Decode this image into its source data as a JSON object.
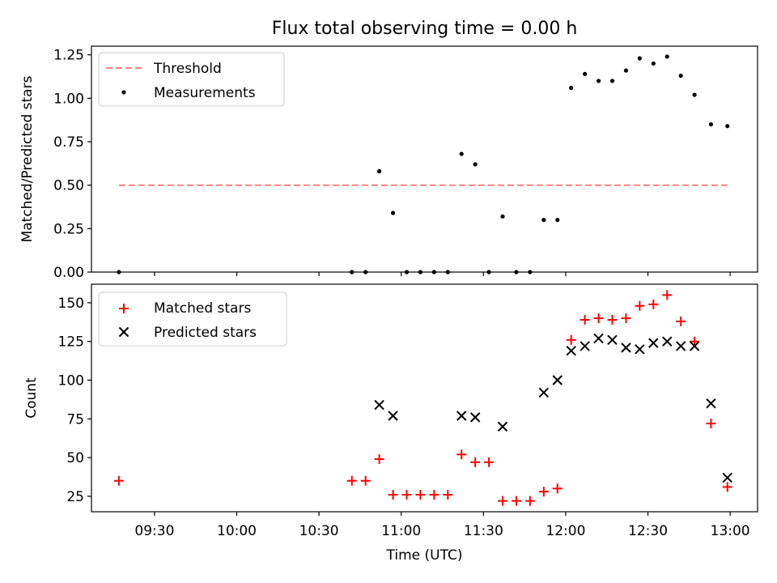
{
  "chart_data": [
    {
      "type": "scatter",
      "title": "Flux total observing time = 0.00 h",
      "ylabel": "Matched/Predicted stars",
      "xlabel": "",
      "ylim": [
        0,
        1.3
      ],
      "yticks": [
        0.0,
        0.25,
        0.5,
        0.75,
        1.0,
        1.25
      ],
      "ytick_labels": [
        "0.00",
        "0.25",
        "0.50",
        "0.75",
        "1.00",
        "1.25"
      ],
      "legend_position": "top-left",
      "threshold": {
        "name": "Threshold",
        "value": 0.5,
        "x_start": "09:17",
        "x_end": "12:59",
        "color": "#ff7f7f"
      },
      "series": [
        {
          "name": "Measurements",
          "color": "#000000",
          "points": [
            [
              "09:17",
              0.0
            ],
            [
              "10:42",
              0.0
            ],
            [
              "10:47",
              0.0
            ],
            [
              "10:52",
              0.58
            ],
            [
              "10:57",
              0.34
            ],
            [
              "11:02",
              0.0
            ],
            [
              "11:07",
              0.0
            ],
            [
              "11:12",
              0.0
            ],
            [
              "11:17",
              0.0
            ],
            [
              "11:22",
              0.68
            ],
            [
              "11:27",
              0.62
            ],
            [
              "11:32",
              0.0
            ],
            [
              "11:37",
              0.32
            ],
            [
              "11:42",
              0.0
            ],
            [
              "11:47",
              0.0
            ],
            [
              "11:52",
              0.3
            ],
            [
              "11:57",
              0.3
            ],
            [
              "12:02",
              1.06
            ],
            [
              "12:07",
              1.14
            ],
            [
              "12:12",
              1.1
            ],
            [
              "12:17",
              1.1
            ],
            [
              "12:22",
              1.16
            ],
            [
              "12:27",
              1.23
            ],
            [
              "12:32",
              1.2
            ],
            [
              "12:37",
              1.24
            ],
            [
              "12:42",
              1.13
            ],
            [
              "12:47",
              1.02
            ],
            [
              "12:53",
              0.85
            ],
            [
              "12:59",
              0.84
            ]
          ]
        }
      ]
    },
    {
      "type": "scatter",
      "title": "",
      "ylabel": "Count",
      "xlabel": "Time (UTC)",
      "ylim": [
        15,
        162
      ],
      "yticks": [
        25,
        50,
        75,
        100,
        125,
        150
      ],
      "ytick_labels": [
        "25",
        "50",
        "75",
        "100",
        "125",
        "150"
      ],
      "xlim": [
        "09:07",
        "13:10"
      ],
      "xticks": [
        "09:30",
        "10:00",
        "10:30",
        "11:00",
        "11:30",
        "12:00",
        "12:30",
        "13:00"
      ],
      "xtick_labels": [
        "09:30",
        "10:00",
        "10:30",
        "11:00",
        "11:30",
        "12:00",
        "12:30",
        "13:00"
      ],
      "legend_position": "top-left",
      "series": [
        {
          "name": "Matched stars",
          "marker": "plus",
          "color": "#ff0000",
          "points": [
            [
              "09:17",
              35
            ],
            [
              "10:42",
              35
            ],
            [
              "10:47",
              35
            ],
            [
              "10:52",
              49
            ],
            [
              "10:57",
              26
            ],
            [
              "11:02",
              26
            ],
            [
              "11:07",
              26
            ],
            [
              "11:12",
              26
            ],
            [
              "11:17",
              26
            ],
            [
              "11:22",
              52
            ],
            [
              "11:27",
              47
            ],
            [
              "11:32",
              47
            ],
            [
              "11:37",
              22
            ],
            [
              "11:42",
              22
            ],
            [
              "11:47",
              22
            ],
            [
              "11:52",
              28
            ],
            [
              "11:57",
              30
            ],
            [
              "12:02",
              126
            ],
            [
              "12:07",
              139
            ],
            [
              "12:12",
              140
            ],
            [
              "12:17",
              139
            ],
            [
              "12:22",
              140
            ],
            [
              "12:27",
              148
            ],
            [
              "12:32",
              149
            ],
            [
              "12:37",
              155
            ],
            [
              "12:42",
              138
            ],
            [
              "12:47",
              125
            ],
            [
              "12:53",
              72
            ],
            [
              "12:59",
              31
            ]
          ]
        },
        {
          "name": "Predicted stars",
          "marker": "x",
          "color": "#000000",
          "points": [
            [
              "10:52",
              84
            ],
            [
              "10:57",
              77
            ],
            [
              "11:22",
              77
            ],
            [
              "11:27",
              76
            ],
            [
              "11:37",
              70
            ],
            [
              "11:52",
              92
            ],
            [
              "11:57",
              100
            ],
            [
              "12:02",
              119
            ],
            [
              "12:07",
              122
            ],
            [
              "12:12",
              127
            ],
            [
              "12:17",
              126
            ],
            [
              "12:22",
              121
            ],
            [
              "12:27",
              120
            ],
            [
              "12:32",
              124
            ],
            [
              "12:37",
              125
            ],
            [
              "12:42",
              122
            ],
            [
              "12:47",
              122
            ],
            [
              "12:53",
              85
            ],
            [
              "12:59",
              37
            ]
          ]
        }
      ]
    }
  ]
}
